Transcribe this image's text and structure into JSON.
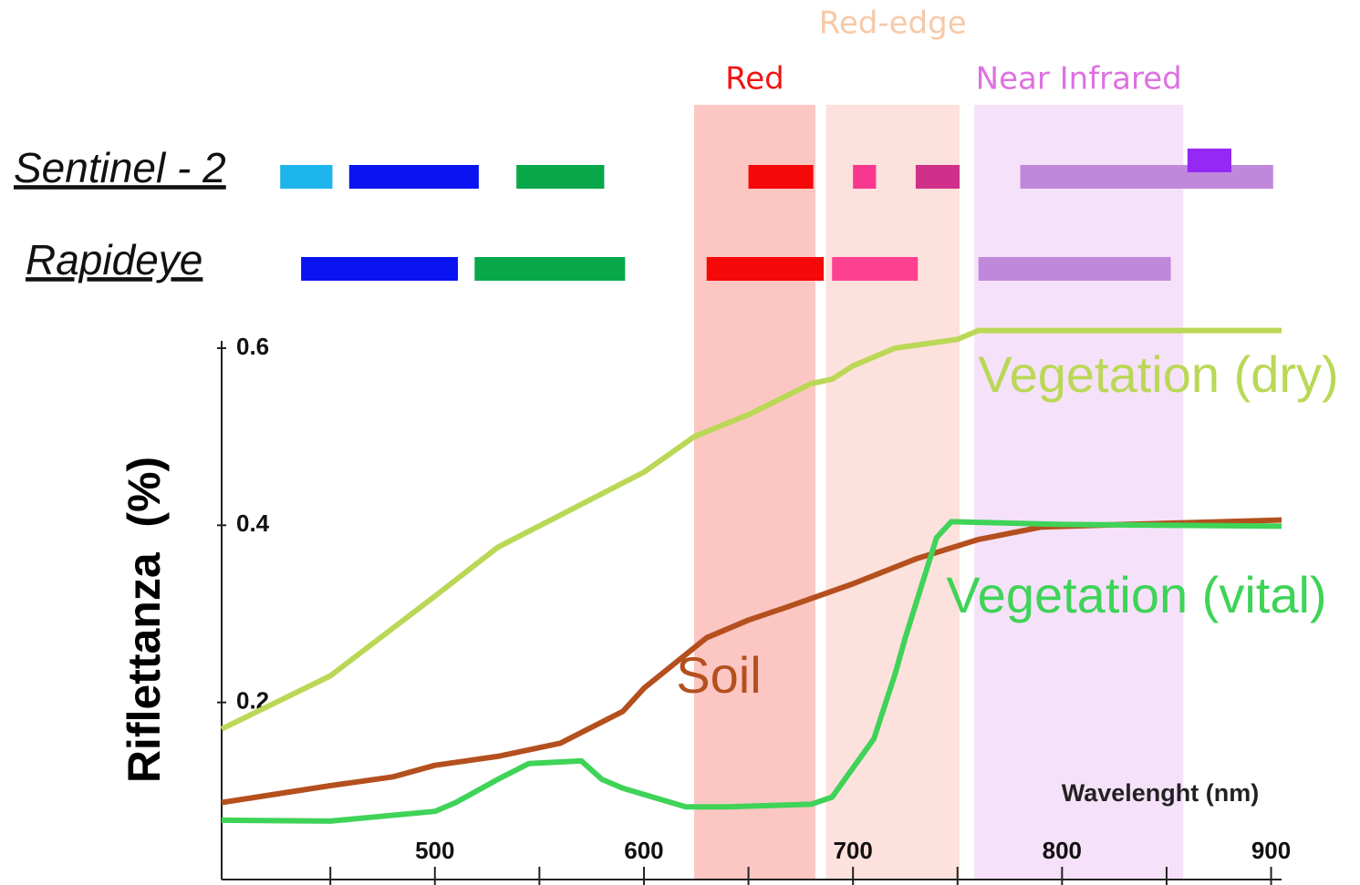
{
  "chart_data": {
    "type": "line",
    "x_label": "Wavelenght (nm)",
    "y_label": "Riflettanza  (%)",
    "xlim": [
      398,
      905
    ],
    "ylim": [
      0,
      0.6
    ],
    "xticks": [
      500,
      600,
      700,
      800,
      900
    ],
    "xminor_ticks": [
      450,
      550,
      650,
      750,
      850
    ],
    "yticks": [
      0.2,
      0.4,
      0.6
    ],
    "regions": [
      {
        "label": "Red",
        "label_color": "#f01414",
        "color": "#fcc6c2",
        "start": 624,
        "end": 682
      },
      {
        "label": "Red-edge",
        "label_color": "#f7c9a8",
        "color": "#fde1dc",
        "start": 687,
        "end": 751
      },
      {
        "label": "Near Infrared",
        "label_color": "#dd70e2",
        "color": "#f6e1fa",
        "start": 758,
        "end": 858
      }
    ],
    "sensors": [
      {
        "name": "Sentinel - 2",
        "bands": [
          {
            "start": 426,
            "end": 451,
            "color": "#1eb4ec"
          },
          {
            "start": 459,
            "end": 521,
            "color": "#0a14f0"
          },
          {
            "start": 539,
            "end": 581,
            "color": "#08a84a"
          },
          {
            "start": 650,
            "end": 681,
            "color": "#f40808"
          },
          {
            "start": 700,
            "end": 711,
            "color": "#f8388e"
          },
          {
            "start": 730,
            "end": 751,
            "color": "#d0308a"
          },
          {
            "start": 780,
            "end": 901,
            "color": "#c088da"
          },
          {
            "start": 860,
            "end": 881,
            "color": "#9528f4"
          }
        ]
      },
      {
        "name": "Rapideye",
        "bands": [
          {
            "start": 436,
            "end": 511,
            "color": "#0a14f0"
          },
          {
            "start": 519,
            "end": 591,
            "color": "#08a84a"
          },
          {
            "start": 630,
            "end": 686,
            "color": "#f40808"
          },
          {
            "start": 690,
            "end": 731,
            "color": "#fe4090"
          },
          {
            "start": 760,
            "end": 852,
            "color": "#c088da"
          }
        ]
      }
    ],
    "series": [
      {
        "name": "Vegetation (dry)",
        "color": "#bad856",
        "x": [
          398,
          450,
          500,
          530,
          600,
          624,
          650,
          680,
          690,
          700,
          720,
          750,
          760,
          905
        ],
        "values": [
          0.17,
          0.23,
          0.32,
          0.375,
          0.46,
          0.5,
          0.525,
          0.56,
          0.565,
          0.58,
          0.6,
          0.61,
          0.62,
          0.62
        ]
      },
      {
        "name": "Soil",
        "color": "#b4501e",
        "x": [
          398,
          450,
          480,
          500,
          530,
          560,
          590,
          600,
          630,
          650,
          670,
          700,
          730,
          760,
          790,
          830,
          905
        ],
        "values": [
          0.087,
          0.106,
          0.116,
          0.129,
          0.139,
          0.154,
          0.19,
          0.216,
          0.273,
          0.293,
          0.309,
          0.334,
          0.362,
          0.384,
          0.398,
          0.401,
          0.406
        ]
      },
      {
        "name": "Vegetation (vital)",
        "color": "#3fd358",
        "x": [
          398,
          450,
          500,
          510,
          530,
          545,
          570,
          580,
          590,
          620,
          640,
          680,
          690,
          710,
          720,
          725,
          740,
          747,
          800,
          905
        ],
        "values": [
          0.067,
          0.066,
          0.077,
          0.087,
          0.113,
          0.131,
          0.134,
          0.113,
          0.103,
          0.082,
          0.082,
          0.085,
          0.093,
          0.159,
          0.231,
          0.273,
          0.386,
          0.404,
          0.401,
          0.399
        ]
      }
    ]
  }
}
